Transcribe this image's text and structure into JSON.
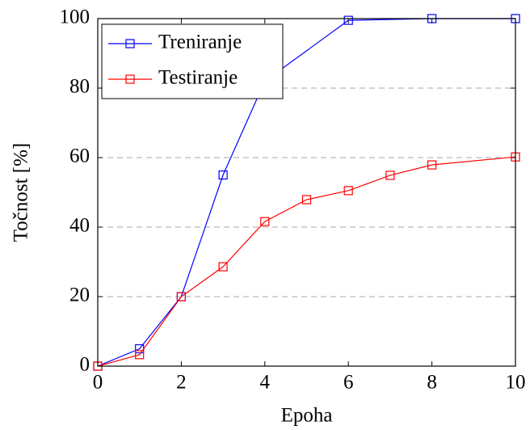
{
  "chart_data": {
    "type": "line",
    "xlabel": "Epoha",
    "ylabel": "Točnost [%]",
    "series": [
      {
        "name": "Treniranje",
        "color": "#0000ff",
        "x": [
          0,
          1,
          2,
          3,
          4,
          6,
          8,
          10
        ],
        "values": [
          0,
          5,
          20,
          55,
          82,
          99.5,
          100,
          100
        ]
      },
      {
        "name": "Testiranje",
        "color": "#ff0000",
        "x": [
          0,
          1,
          2,
          3,
          4,
          5,
          6,
          7,
          8,
          10
        ],
        "values": [
          0,
          3.3,
          20,
          28.6,
          41.6,
          47.9,
          50.5,
          54.9,
          57.9,
          60.2
        ]
      }
    ],
    "xlim": [
      0,
      10
    ],
    "xticks": [
      0,
      2,
      4,
      6,
      8,
      10
    ],
    "ylim": [
      0,
      100
    ],
    "yticks": [
      0,
      20,
      40,
      60,
      80,
      100
    ],
    "grid": true,
    "legend": "upper left"
  }
}
